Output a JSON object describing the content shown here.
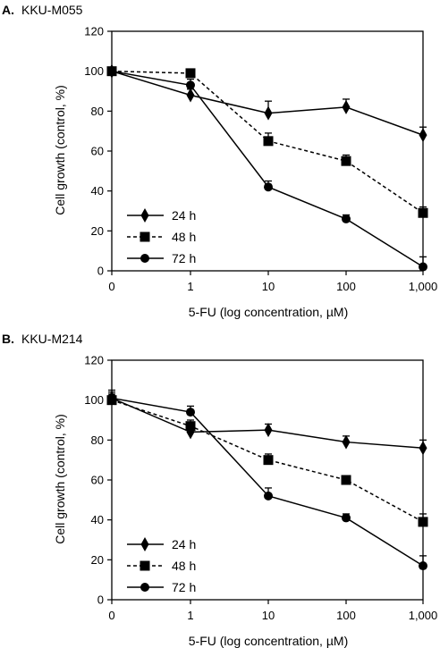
{
  "chart_data": [
    {
      "type": "line",
      "panel_label": "A.",
      "title": "KKU-M055",
      "xlabel": "5-FU (log concentration, µM)",
      "ylabel": "Cell growth (control, %)",
      "categories": [
        "0",
        "1",
        "10",
        "100",
        "1,000"
      ],
      "yticks": [
        "0",
        "20",
        "40",
        "60",
        "80",
        "100",
        "120"
      ],
      "ylim": [
        0,
        120
      ],
      "grid": false,
      "legend_position": "bottom-left",
      "series": [
        {
          "name": "24 h",
          "marker": "diamond",
          "line": "solid",
          "color": "#000000",
          "values": [
            100,
            88,
            79,
            82,
            68
          ],
          "error": [
            2,
            3,
            6,
            4,
            4
          ]
        },
        {
          "name": "48 h",
          "marker": "square",
          "line": "dashed",
          "color": "#000000",
          "values": [
            100,
            99,
            65,
            55,
            29
          ],
          "error": [
            2,
            1,
            4,
            3,
            3
          ]
        },
        {
          "name": "72 h",
          "marker": "circle",
          "line": "solid",
          "color": "#000000",
          "values": [
            100,
            93,
            42,
            26,
            2
          ],
          "error": [
            2,
            3,
            3,
            2,
            5
          ]
        }
      ]
    },
    {
      "type": "line",
      "panel_label": "B.",
      "title": "KKU-M214",
      "xlabel": "5-FU (log concentration, µM)",
      "ylabel": "Cell growth (control, %)",
      "categories": [
        "0",
        "1",
        "10",
        "100",
        "1,000"
      ],
      "yticks": [
        "0",
        "20",
        "40",
        "60",
        "80",
        "100",
        "120"
      ],
      "ylim": [
        0,
        120
      ],
      "grid": false,
      "legend_position": "bottom-left",
      "series": [
        {
          "name": "24 h",
          "marker": "diamond",
          "line": "solid",
          "color": "#000000",
          "values": [
            101,
            84,
            85,
            79,
            76
          ],
          "error": [
            4,
            3,
            3,
            3,
            4
          ]
        },
        {
          "name": "48 h",
          "marker": "square",
          "line": "dashed",
          "color": "#000000",
          "values": [
            100,
            87,
            70,
            60,
            39
          ],
          "error": [
            3,
            3,
            3,
            2,
            4
          ]
        },
        {
          "name": "72 h",
          "marker": "circle",
          "line": "solid",
          "color": "#000000",
          "values": [
            101,
            94,
            52,
            41,
            17
          ],
          "error": [
            3,
            3,
            4,
            2,
            5
          ]
        }
      ]
    }
  ]
}
